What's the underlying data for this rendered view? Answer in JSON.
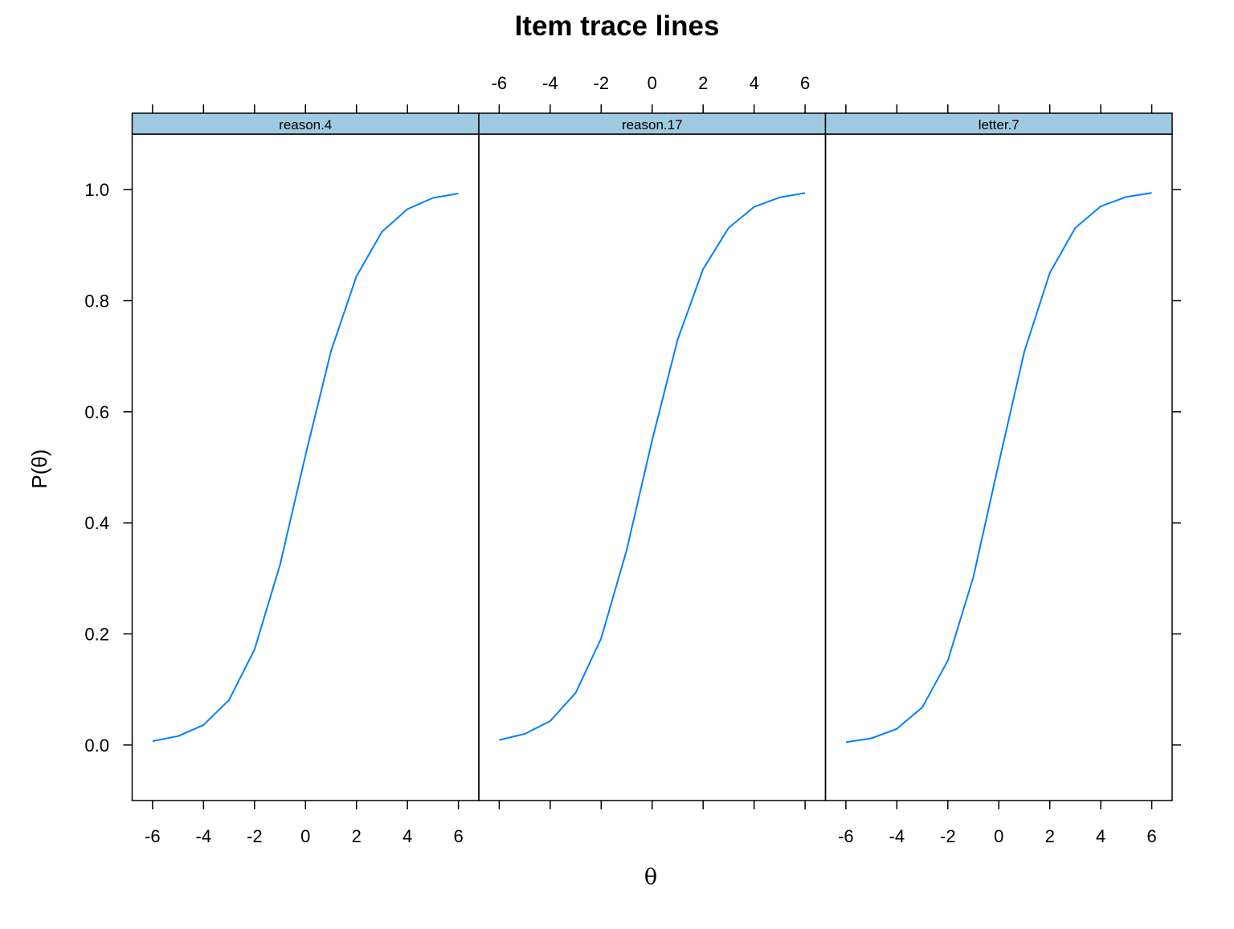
{
  "chart_data": {
    "type": "line",
    "title": "Item trace lines",
    "xlabel": "θ",
    "ylabel": "P(θ)",
    "xlim": [
      -6.8,
      6.8
    ],
    "ylim": [
      -0.1,
      1.1
    ],
    "x_ticks": [
      "-6",
      "-4",
      "-2",
      "0",
      "2",
      "4",
      "6"
    ],
    "y_ticks": [
      "0.0",
      "0.2",
      "0.4",
      "0.6",
      "0.8",
      "1.0"
    ],
    "line_color": "#0080ff",
    "strip_color": "#9ecae1",
    "x": [
      -6,
      -5,
      -4,
      -3,
      -2,
      -1,
      0,
      1,
      2,
      3,
      4,
      5,
      6
    ],
    "panels": [
      {
        "label": "reason.4",
        "values": [
          0.007,
          0.016,
          0.036,
          0.081,
          0.172,
          0.324,
          0.522,
          0.709,
          0.844,
          0.924,
          0.965,
          0.985,
          0.993
        ]
      },
      {
        "label": "reason.17",
        "values": [
          0.009,
          0.02,
          0.043,
          0.094,
          0.192,
          0.351,
          0.549,
          0.73,
          0.857,
          0.931,
          0.969,
          0.986,
          0.994
        ]
      },
      {
        "label": "letter.7",
        "values": [
          0.005,
          0.012,
          0.029,
          0.068,
          0.152,
          0.302,
          0.508,
          0.708,
          0.85,
          0.931,
          0.97,
          0.987,
          0.994
        ]
      }
    ]
  }
}
